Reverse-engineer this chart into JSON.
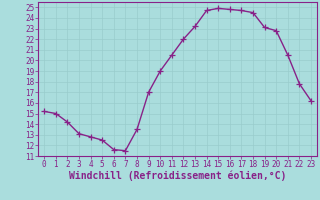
{
  "x": [
    0,
    1,
    2,
    3,
    4,
    5,
    6,
    7,
    8,
    9,
    10,
    11,
    12,
    13,
    14,
    15,
    16,
    17,
    18,
    19,
    20,
    21,
    22,
    23
  ],
  "y": [
    15.2,
    15.0,
    14.2,
    13.1,
    12.8,
    12.5,
    11.6,
    11.5,
    13.5,
    17.0,
    19.0,
    20.5,
    22.0,
    23.2,
    24.7,
    24.9,
    24.8,
    24.7,
    24.5,
    23.1,
    22.8,
    20.5,
    17.8,
    16.2
  ],
  "line_color": "#882288",
  "marker": "+",
  "bg_color": "#aadddd",
  "grid_color": "#bbdddd",
  "xlabel": "Windchill (Refroidissement éolien,°C)",
  "xlabel_fontsize": 7,
  "ylim": [
    11,
    25.5
  ],
  "xlim": [
    -0.5,
    23.5
  ],
  "yticks": [
    11,
    12,
    13,
    14,
    15,
    16,
    17,
    18,
    19,
    20,
    21,
    22,
    23,
    24,
    25
  ],
  "xticks": [
    0,
    1,
    2,
    3,
    4,
    5,
    6,
    7,
    8,
    9,
    10,
    11,
    12,
    13,
    14,
    15,
    16,
    17,
    18,
    19,
    20,
    21,
    22,
    23
  ],
  "tick_fontsize": 5.5,
  "line_width": 1.0,
  "marker_size": 4
}
